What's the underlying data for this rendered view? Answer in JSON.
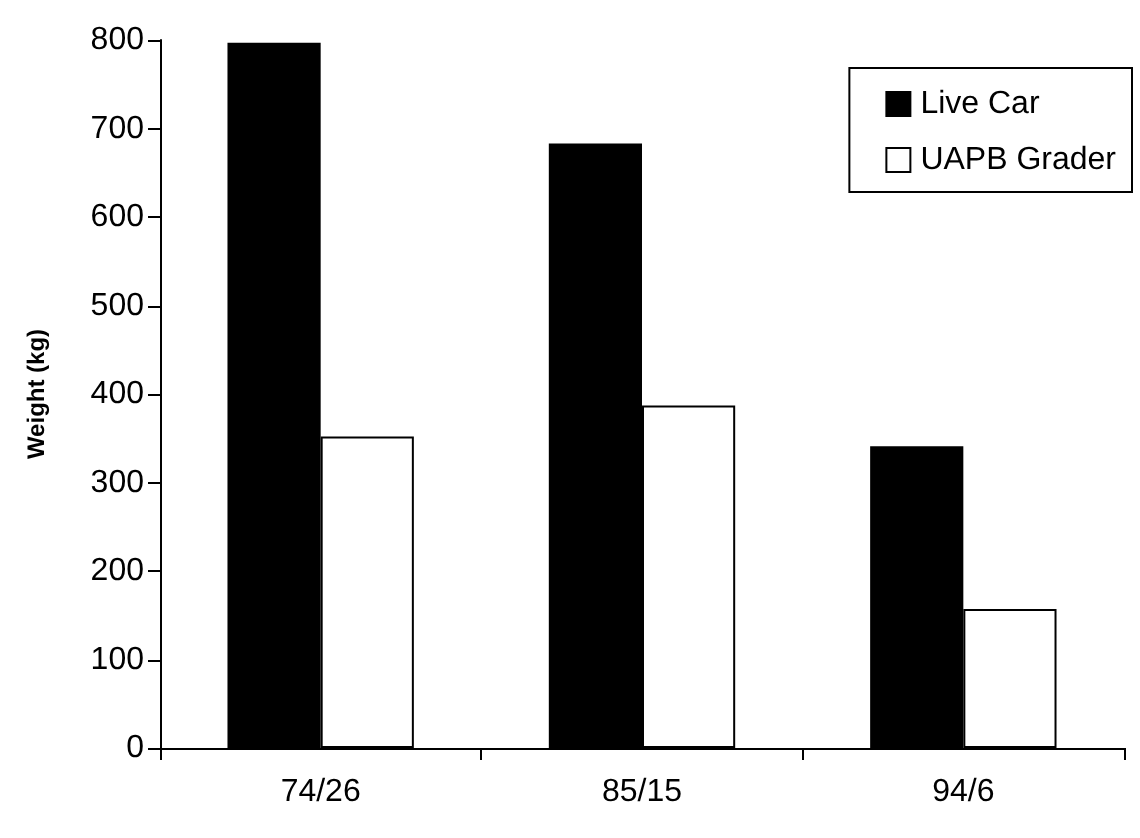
{
  "chart_data": {
    "type": "bar",
    "ylabel": "Weight (kg)",
    "categories": [
      "74/26",
      "85/15",
      "94/6"
    ],
    "series": [
      {
        "name": "Live Car",
        "color": "#000000",
        "values": [
          797,
          683,
          341
        ]
      },
      {
        "name": "UAPB Grader",
        "color": "#ffffff",
        "values": [
          352,
          387,
          157
        ]
      }
    ],
    "ylim": [
      0,
      800
    ],
    "yticks": [
      0,
      100,
      200,
      300,
      400,
      500,
      600,
      700,
      800
    ],
    "grid": false,
    "legend": "top right"
  }
}
